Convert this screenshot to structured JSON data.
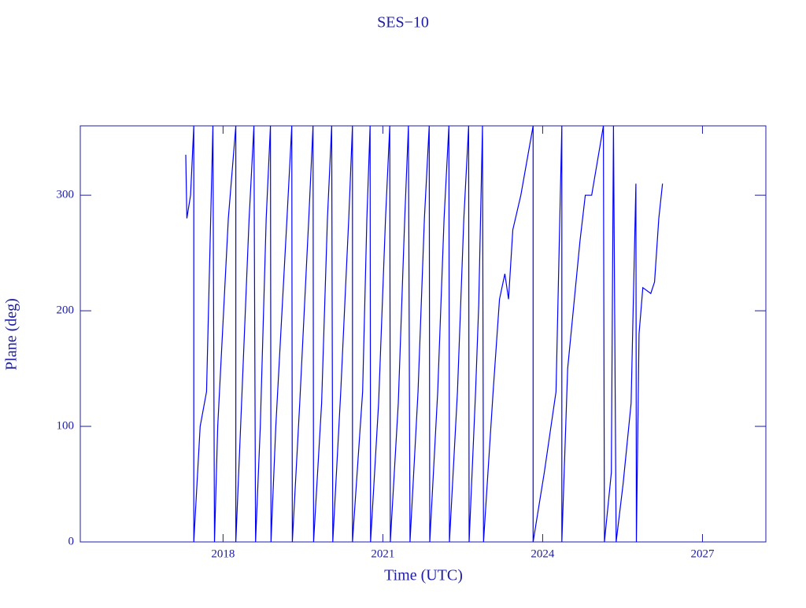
{
  "chart_data": {
    "type": "line",
    "title": "SES−10",
    "x_label": "Time (UTC)",
    "y_label": "Plane (deg)",
    "xlim": [
      2015.32,
      2028.19
    ],
    "ylim": [
      0,
      360
    ],
    "xticks": [
      2018,
      2021,
      2024,
      2027
    ],
    "yticks": [
      0,
      100,
      200,
      300
    ],
    "axis_color": "#1c1ca8",
    "series": [
      {
        "name": "SES-10",
        "color": "#0000ff",
        "x": [
          2017.3,
          2017.32,
          2017.39,
          2017.45,
          2017.45,
          2017.57,
          2017.69,
          2017.81,
          2017.84,
          2017.9,
          2018.1,
          2018.24,
          2018.24,
          2018.33,
          2018.49,
          2018.58,
          2018.61,
          2018.7,
          2018.81,
          2018.89,
          2018.9,
          2018.99,
          2019.2,
          2019.29,
          2019.3,
          2019.44,
          2019.61,
          2019.69,
          2019.7,
          2019.85,
          2019.96,
          2020.04,
          2020.06,
          2020.21,
          2020.36,
          2020.43,
          2020.43,
          2020.62,
          2020.7,
          2020.76,
          2020.77,
          2020.92,
          2021.05,
          2021.13,
          2021.14,
          2021.29,
          2021.41,
          2021.48,
          2021.51,
          2021.66,
          2021.78,
          2021.87,
          2021.88,
          2022.03,
          2022.15,
          2022.24,
          2022.25,
          2022.4,
          2022.52,
          2022.61,
          2022.62,
          2022.74,
          2022.8,
          2022.87,
          2022.89,
          2023.07,
          2023.19,
          2023.29,
          2023.36,
          2023.44,
          2023.59,
          2023.82,
          2023.82,
          2024.03,
          2024.25,
          2024.36,
          2024.36,
          2024.47,
          2024.7,
          2024.8,
          2024.92,
          2025.14,
          2025.16,
          2025.29,
          2025.33,
          2025.38,
          2025.51,
          2025.66,
          2025.75,
          2025.76,
          2025.81,
          2025.88,
          2026.03,
          2026.1,
          2026.18,
          2026.25
        ],
        "values": [
          335,
          280,
          300,
          360,
          0,
          100,
          130,
          360,
          0,
          100,
          280,
          360,
          0,
          100,
          280,
          360,
          0,
          100,
          280,
          360,
          0,
          100,
          280,
          360,
          0,
          120,
          280,
          360,
          0,
          120,
          280,
          360,
          0,
          130,
          280,
          360,
          0,
          130,
          280,
          360,
          0,
          120,
          280,
          360,
          0,
          120,
          280,
          360,
          0,
          130,
          280,
          360,
          0,
          130,
          280,
          360,
          0,
          130,
          280,
          360,
          0,
          130,
          205,
          360,
          0,
          130,
          210,
          232,
          210,
          270,
          300,
          360,
          0,
          60,
          130,
          360,
          0,
          150,
          260,
          300,
          300,
          360,
          0,
          60,
          360,
          0,
          50,
          120,
          310,
          0,
          180,
          220,
          215,
          225,
          280,
          310
        ]
      }
    ]
  }
}
